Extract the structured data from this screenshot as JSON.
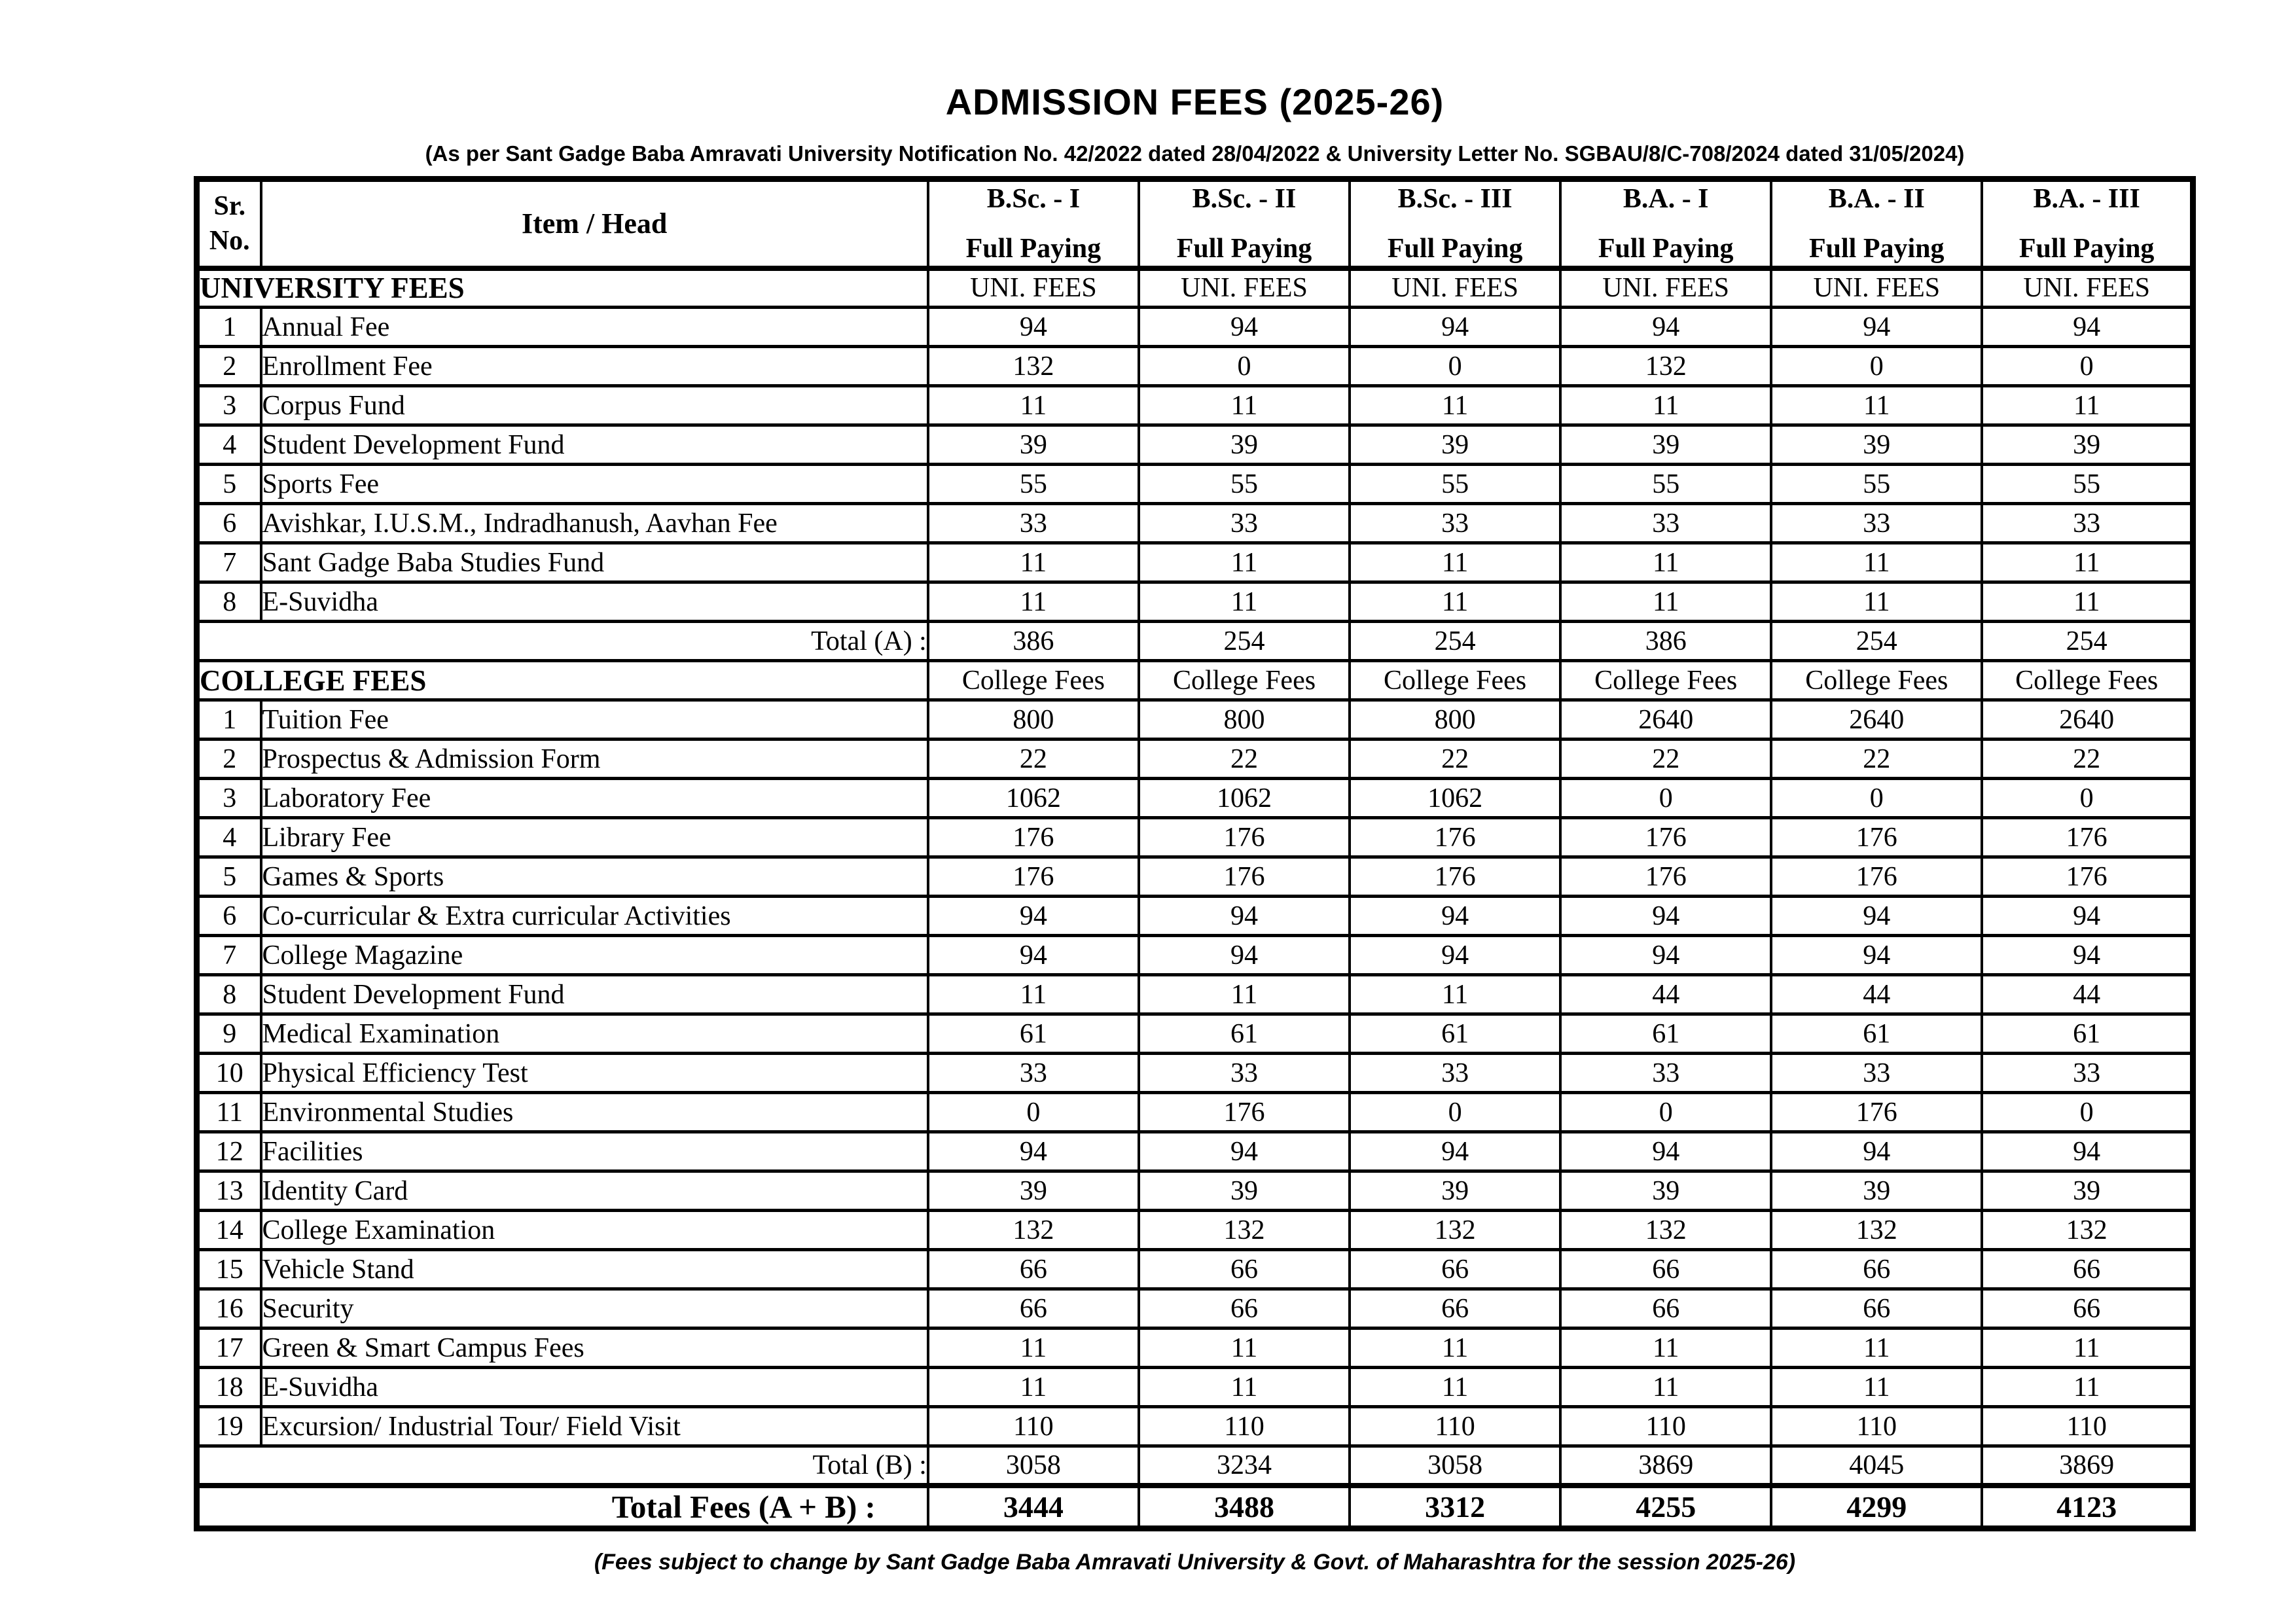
{
  "page": {
    "title": "ADMISSION FEES (2025-26)",
    "subtitle": "(As per Sant Gadge Baba Amravati University Notification No. 42/2022 dated 28/04/2022 & University Letter No. SGBAU/8/C-708/2024 dated 31/05/2024)",
    "footnote": "(Fees subject to change by Sant Gadge Baba Amravati University & Govt. of Maharashtra for the session 2025-26)"
  },
  "table": {
    "sr_label_line1": "Sr.",
    "sr_label_line2": "No.",
    "item_label": "Item / Head",
    "courses": [
      {
        "name": "B.Sc. - I",
        "sub": "Full Paying"
      },
      {
        "name": "B.Sc. - II",
        "sub": "Full Paying"
      },
      {
        "name": "B.Sc. - III",
        "sub": "Full Paying"
      },
      {
        "name": "B.A. -  I",
        "sub": "Full Paying"
      },
      {
        "name": "B.A. -  II",
        "sub": "Full Paying"
      },
      {
        "name": "B.A. -  III",
        "sub": "Full Paying"
      }
    ]
  },
  "university_section": {
    "label": "UNIVERSITY FEES",
    "col_caption": "UNI. FEES",
    "rows": [
      {
        "sr": "1",
        "item": "Annual Fee",
        "values": [
          "94",
          "94",
          "94",
          "94",
          "94",
          "94"
        ]
      },
      {
        "sr": "2",
        "item": "Enrollment Fee",
        "values": [
          "132",
          "0",
          "0",
          "132",
          "0",
          "0"
        ]
      },
      {
        "sr": "3",
        "item": "Corpus Fund",
        "values": [
          "11",
          "11",
          "11",
          "11",
          "11",
          "11"
        ]
      },
      {
        "sr": "4",
        "item": "Student Development Fund",
        "values": [
          "39",
          "39",
          "39",
          "39",
          "39",
          "39"
        ]
      },
      {
        "sr": "5",
        "item": "Sports Fee",
        "values": [
          "55",
          "55",
          "55",
          "55",
          "55",
          "55"
        ]
      },
      {
        "sr": "6",
        "item": "Avishkar, I.U.S.M., Indradhanush, Aavhan Fee",
        "values": [
          "33",
          "33",
          "33",
          "33",
          "33",
          "33"
        ]
      },
      {
        "sr": "7",
        "item": "Sant Gadge Baba Studies Fund",
        "values": [
          "11",
          "11",
          "11",
          "11",
          "11",
          "11"
        ]
      },
      {
        "sr": "8",
        "item": "E-Suvidha",
        "values": [
          "11",
          "11",
          "11",
          "11",
          "11",
          "11"
        ]
      }
    ],
    "total_label": "Total (A)  :",
    "totals": [
      "386",
      "254",
      "254",
      "386",
      "254",
      "254"
    ]
  },
  "college_section": {
    "label": "COLLEGE FEES",
    "col_caption": "College Fees",
    "rows": [
      {
        "sr": "1",
        "item": "Tuition Fee",
        "values": [
          "800",
          "800",
          "800",
          "2640",
          "2640",
          "2640"
        ]
      },
      {
        "sr": "2",
        "item": "Prospectus & Admission Form",
        "values": [
          "22",
          "22",
          "22",
          "22",
          "22",
          "22"
        ]
      },
      {
        "sr": "3",
        "item": "Laboratory Fee",
        "values": [
          "1062",
          "1062",
          "1062",
          "0",
          "0",
          "0"
        ]
      },
      {
        "sr": "4",
        "item": "Library Fee",
        "values": [
          "176",
          "176",
          "176",
          "176",
          "176",
          "176"
        ]
      },
      {
        "sr": "5",
        "item": "Games & Sports",
        "values": [
          "176",
          "176",
          "176",
          "176",
          "176",
          "176"
        ]
      },
      {
        "sr": "6",
        "item": "Co-curricular & Extra curricular Activities",
        "values": [
          "94",
          "94",
          "94",
          "94",
          "94",
          "94"
        ]
      },
      {
        "sr": "7",
        "item": "College Magazine",
        "values": [
          "94",
          "94",
          "94",
          "94",
          "94",
          "94"
        ]
      },
      {
        "sr": "8",
        "item": "Student Development Fund",
        "values": [
          "11",
          "11",
          "11",
          "44",
          "44",
          "44"
        ]
      },
      {
        "sr": "9",
        "item": "Medical Examination",
        "values": [
          "61",
          "61",
          "61",
          "61",
          "61",
          "61"
        ]
      },
      {
        "sr": "10",
        "item": "Physical Efficiency Test",
        "values": [
          "33",
          "33",
          "33",
          "33",
          "33",
          "33"
        ]
      },
      {
        "sr": "11",
        "item": "Environmental Studies",
        "values": [
          "0",
          "176",
          "0",
          "0",
          "176",
          "0"
        ]
      },
      {
        "sr": "12",
        "item": "Facilities",
        "values": [
          "94",
          "94",
          "94",
          "94",
          "94",
          "94"
        ]
      },
      {
        "sr": "13",
        "item": "Identity Card",
        "values": [
          "39",
          "39",
          "39",
          "39",
          "39",
          "39"
        ]
      },
      {
        "sr": "14",
        "item": "College Examination",
        "values": [
          "132",
          "132",
          "132",
          "132",
          "132",
          "132"
        ]
      },
      {
        "sr": "15",
        "item": "Vehicle Stand",
        "values": [
          "66",
          "66",
          "66",
          "66",
          "66",
          "66"
        ]
      },
      {
        "sr": "16",
        "item": "Security",
        "values": [
          "66",
          "66",
          "66",
          "66",
          "66",
          "66"
        ]
      },
      {
        "sr": "17",
        "item": "Green & Smart Campus Fees",
        "values": [
          "11",
          "11",
          "11",
          "11",
          "11",
          "11"
        ]
      },
      {
        "sr": "18",
        "item": "E-Suvidha",
        "values": [
          "11",
          "11",
          "11",
          "11",
          "11",
          "11"
        ]
      },
      {
        "sr": "19",
        "item": "Excursion/ Industrial Tour/ Field Visit",
        "values": [
          "110",
          "110",
          "110",
          "110",
          "110",
          "110"
        ]
      }
    ],
    "total_label": "Total (B)  :",
    "totals": [
      "3058",
      "3234",
      "3058",
      "3869",
      "4045",
      "3869"
    ]
  },
  "grand_total": {
    "label": "Total  Fees (A + B)  :",
    "values": [
      "3444",
      "3488",
      "3312",
      "4255",
      "4299",
      "4123"
    ]
  }
}
